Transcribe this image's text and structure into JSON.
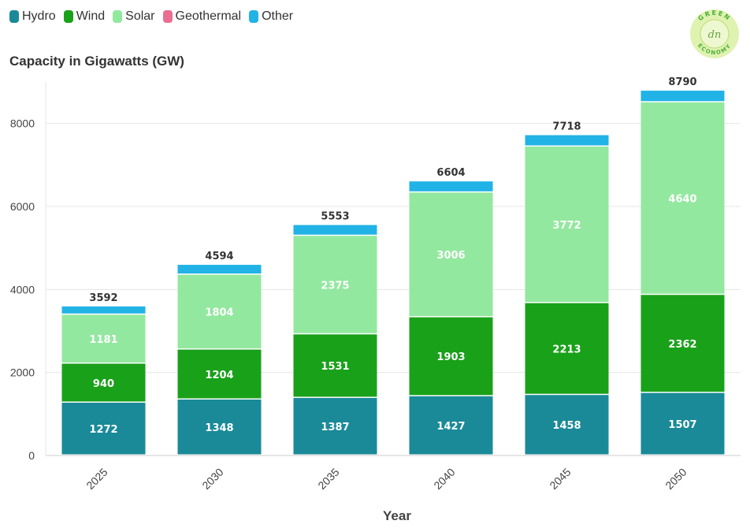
{
  "chart_data": {
    "type": "bar",
    "stacked": true,
    "title": "Capacity in Gigawatts (GW)",
    "xlabel": "Year",
    "ylabel": "",
    "categories": [
      "2025",
      "2030",
      "2035",
      "2040",
      "2045",
      "2050"
    ],
    "series": [
      {
        "name": "Hydro",
        "color": "#1a8a99",
        "values": [
          1272,
          1348,
          1387,
          1427,
          1458,
          1507
        ]
      },
      {
        "name": "Wind",
        "color": "#1aa11a",
        "values": [
          940,
          1204,
          1531,
          1903,
          2213,
          2362
        ]
      },
      {
        "name": "Solar",
        "color": "#93e89f",
        "values": [
          1181,
          1804,
          2375,
          3006,
          3772,
          4640
        ]
      },
      {
        "name": "Geothermal",
        "color": "#e86f8f",
        "values": [
          0,
          0,
          0,
          0,
          0,
          0
        ]
      },
      {
        "name": "Other",
        "color": "#21b3e6",
        "values": [
          199,
          238,
          260,
          268,
          275,
          281
        ]
      }
    ],
    "totals": [
      3592,
      4594,
      5553,
      6604,
      7718,
      8790
    ],
    "ylim": [
      0,
      9000
    ],
    "yticks": [
      0,
      2000,
      4000,
      6000,
      8000
    ],
    "grid": true,
    "legend_position": "top-left"
  },
  "logo": {
    "top_text": "GREEN",
    "bottom_text": "ECONOMY",
    "monogram": "dn"
  }
}
